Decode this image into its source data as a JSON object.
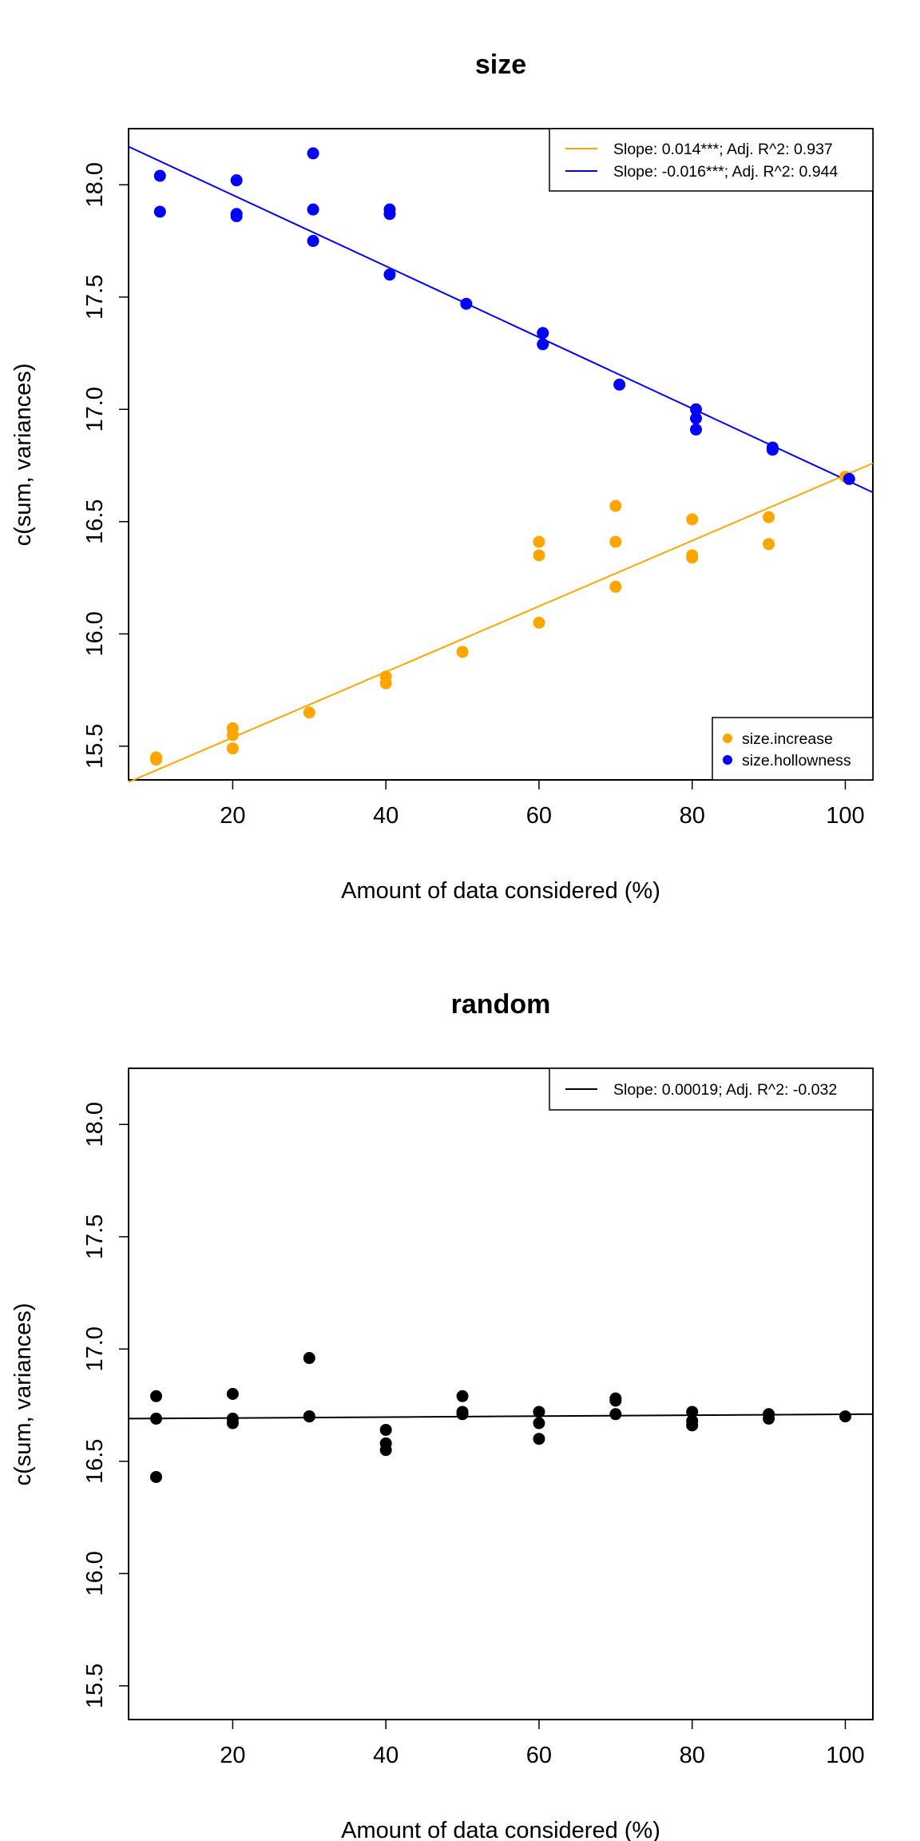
{
  "chart_data": [
    {
      "type": "scatter",
      "title": "size",
      "xlabel": "Amount of data considered (%)",
      "ylabel": "c(sum, variances)",
      "xlim": [
        6.4,
        103.6
      ],
      "ylim": [
        15.35,
        18.25
      ],
      "xticks": [
        "20",
        "40",
        "60",
        "80",
        "100"
      ],
      "yticks": [
        "15.5",
        "16.0",
        "16.5",
        "17.0",
        "17.5",
        "18.0"
      ],
      "legend_position": "top-right",
      "lines_legend": [
        {
          "label": "Slope: 0.014***; Adj. R^2: 0.937",
          "color": "#FFA500"
        },
        {
          "label": "Slope: -0.016***; Adj. R^2: 0.944",
          "color": "#0000FF"
        }
      ],
      "points_legend_position": "bottom-right",
      "series": [
        {
          "name": "size.increase",
          "color": "#FFA500",
          "points": [
            [
              10,
              15.45
            ],
            [
              10,
              15.44
            ],
            [
              20,
              15.58
            ],
            [
              20,
              15.55
            ],
            [
              20,
              15.49
            ],
            [
              30,
              15.65
            ],
            [
              40,
              15.81
            ],
            [
              40,
              15.78
            ],
            [
              50,
              15.92
            ],
            [
              60,
              16.41
            ],
            [
              60,
              16.35
            ],
            [
              60,
              16.05
            ],
            [
              70,
              16.57
            ],
            [
              70,
              16.41
            ],
            [
              70,
              16.21
            ],
            [
              80,
              16.51
            ],
            [
              80,
              16.35
            ],
            [
              80,
              16.34
            ],
            [
              90,
              16.52
            ],
            [
              90,
              16.4
            ],
            [
              100,
              16.7
            ]
          ],
          "fit": {
            "x": [
              6.4,
              103.6
            ],
            "y": [
              15.34,
              16.76
            ]
          }
        },
        {
          "name": "size.hollowness",
          "color": "#0000FF",
          "points": [
            [
              10.5,
              18.04
            ],
            [
              10.5,
              17.88
            ],
            [
              20.5,
              18.02
            ],
            [
              20.5,
              17.87
            ],
            [
              20.5,
              17.86
            ],
            [
              30.5,
              18.14
            ],
            [
              30.5,
              17.89
            ],
            [
              30.5,
              17.75
            ],
            [
              40.5,
              17.89
            ],
            [
              40.5,
              17.87
            ],
            [
              40.5,
              17.6
            ],
            [
              50.5,
              17.47
            ],
            [
              60.5,
              17.34
            ],
            [
              60.5,
              17.29
            ],
            [
              70.5,
              17.11
            ],
            [
              80.5,
              17.0
            ],
            [
              80.5,
              16.96
            ],
            [
              80.5,
              16.91
            ],
            [
              90.5,
              16.83
            ],
            [
              90.5,
              16.82
            ],
            [
              100.5,
              16.69
            ]
          ],
          "fit": {
            "x": [
              6.4,
              103.6
            ],
            "y": [
              18.17,
              16.63
            ]
          }
        }
      ]
    },
    {
      "type": "scatter",
      "title": "random",
      "xlabel": "Amount of data considered (%)",
      "ylabel": "c(sum, variances)",
      "xlim": [
        6.4,
        103.6
      ],
      "ylim": [
        15.35,
        18.25
      ],
      "xticks": [
        "20",
        "40",
        "60",
        "80",
        "100"
      ],
      "yticks": [
        "15.5",
        "16.0",
        "16.5",
        "17.0",
        "17.5",
        "18.0"
      ],
      "legend_position": "top-right",
      "lines_legend": [
        {
          "label": "Slope: 0.00019; Adj. R^2: -0.032",
          "color": "#000000"
        }
      ],
      "series": [
        {
          "color": "#000000",
          "points": [
            [
              10,
              16.79
            ],
            [
              10,
              16.69
            ],
            [
              10,
              16.43
            ],
            [
              20,
              16.8
            ],
            [
              20,
              16.69
            ],
            [
              20,
              16.67
            ],
            [
              30,
              16.96
            ],
            [
              30,
              16.7
            ],
            [
              30,
              16.7
            ],
            [
              40,
              16.64
            ],
            [
              40,
              16.58
            ],
            [
              40,
              16.55
            ],
            [
              50,
              16.79
            ],
            [
              50,
              16.72
            ],
            [
              50,
              16.71
            ],
            [
              60,
              16.72
            ],
            [
              60,
              16.67
            ],
            [
              60,
              16.6
            ],
            [
              70,
              16.78
            ],
            [
              70,
              16.77
            ],
            [
              70,
              16.71
            ],
            [
              80,
              16.72
            ],
            [
              80,
              16.68
            ],
            [
              80,
              16.66
            ],
            [
              90,
              16.71
            ],
            [
              90,
              16.69
            ],
            [
              100,
              16.7
            ]
          ],
          "fit": {
            "x": [
              6.4,
              103.6
            ],
            "y": [
              16.69,
              16.71
            ]
          }
        }
      ]
    }
  ]
}
